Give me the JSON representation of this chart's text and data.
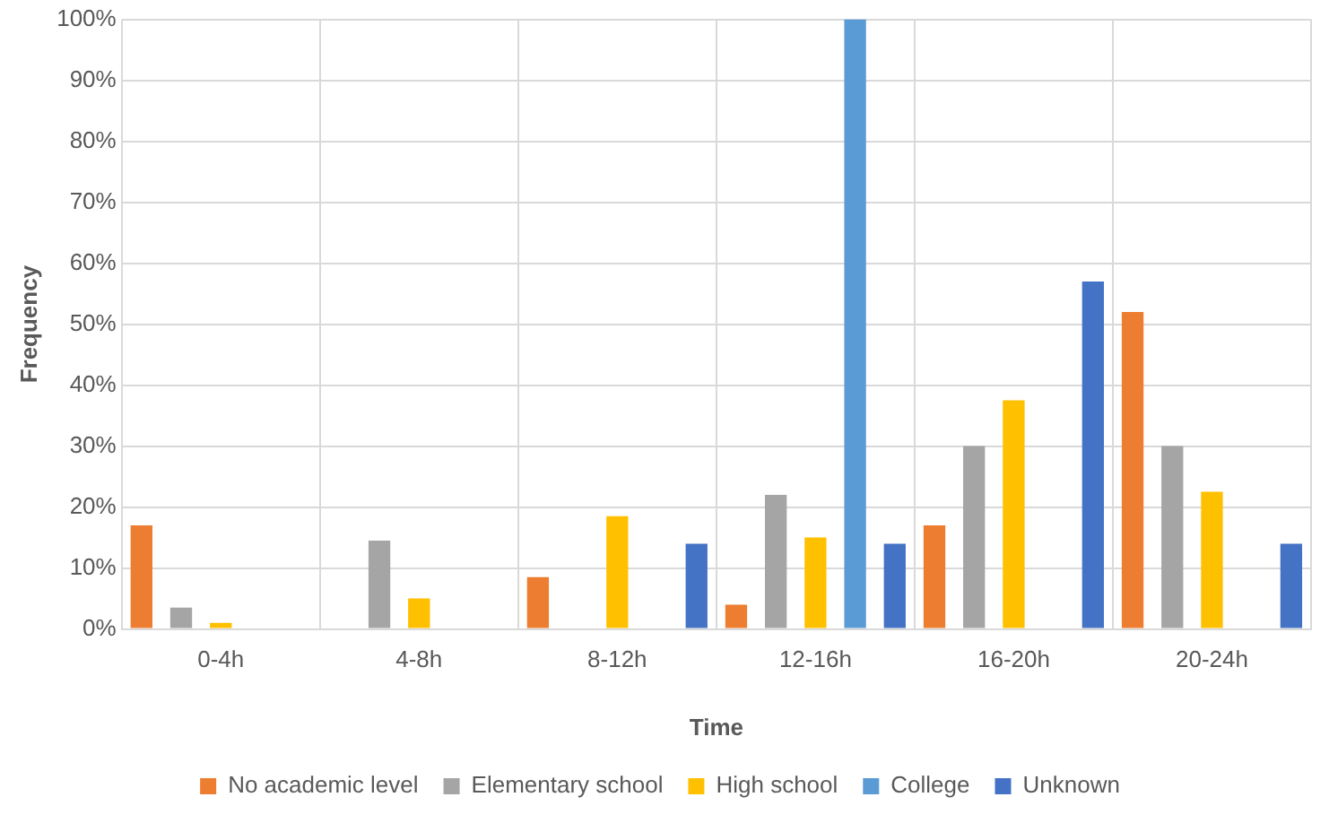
{
  "chart_data": {
    "type": "bar",
    "xlabel": "Time",
    "ylabel": "Frequency",
    "categories": [
      "0-4h",
      "4-8h",
      "8-12h",
      "12-16h",
      "16-20h",
      "20-24h"
    ],
    "series": [
      {
        "name": "No academic level",
        "color": "#ed7d31",
        "values": [
          17,
          0,
          8.5,
          4,
          17,
          52
        ]
      },
      {
        "name": "Elementary school",
        "color": "#a5a5a5",
        "values": [
          3.5,
          14.5,
          0,
          22,
          30,
          30
        ]
      },
      {
        "name": "High school",
        "color": "#ffc000",
        "values": [
          1,
          5,
          18.5,
          15,
          37.5,
          22.5
        ]
      },
      {
        "name": "College",
        "color": "#5b9bd5",
        "values": [
          0,
          0,
          0,
          100,
          0,
          0
        ]
      },
      {
        "name": "Unknown",
        "color": "#4472c4",
        "values": [
          0,
          0,
          14,
          14,
          57,
          14
        ]
      }
    ],
    "ylim": [
      0,
      100
    ],
    "yticks": [
      {
        "value": 0,
        "label": "0%"
      },
      {
        "value": 10,
        "label": "10%"
      },
      {
        "value": 20,
        "label": "20%"
      },
      {
        "value": 30,
        "label": "30%"
      },
      {
        "value": 40,
        "label": "40%"
      },
      {
        "value": 50,
        "label": "50%"
      },
      {
        "value": 60,
        "label": "60%"
      },
      {
        "value": 70,
        "label": "70%"
      },
      {
        "value": 80,
        "label": "80%"
      },
      {
        "value": 90,
        "label": "90%"
      },
      {
        "value": 100,
        "label": "100%"
      }
    ],
    "grid": true,
    "legend": "bottom"
  }
}
